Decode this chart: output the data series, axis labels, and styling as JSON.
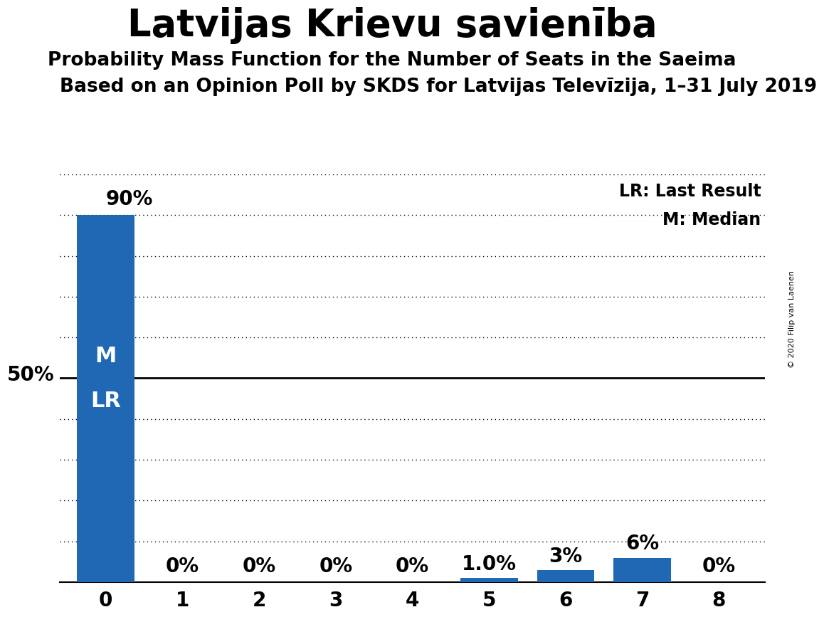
{
  "title": "Latvijas Krievu savienība",
  "subtitle": "Probability Mass Function for the Number of Seats in the Saeima",
  "subtitle2": "Based on an Opinion Poll by SKDS for Latvijas Televīzija, 1–31 July 2019",
  "copyright": "© 2020 Filip van Laenen",
  "categories": [
    0,
    1,
    2,
    3,
    4,
    5,
    6,
    7,
    8
  ],
  "values": [
    90,
    0,
    0,
    0,
    0,
    1.0,
    3,
    6,
    0
  ],
  "bar_labels": [
    "90%",
    "0%",
    "0%",
    "0%",
    "0%",
    "1.0%",
    "3%",
    "6%",
    "0%"
  ],
  "bar_color": "#2068B4",
  "background_color": "#FFFFFF",
  "ylim": [
    0,
    100
  ],
  "legend_lr": "LR: Last Result",
  "legend_m": "M: Median",
  "title_fontsize": 38,
  "subtitle_fontsize": 19,
  "subtitle2_fontsize": 19,
  "tick_fontsize": 20,
  "bar_label_fontsize": 20,
  "bar_width": 0.75,
  "median_label_fontsize": 22
}
